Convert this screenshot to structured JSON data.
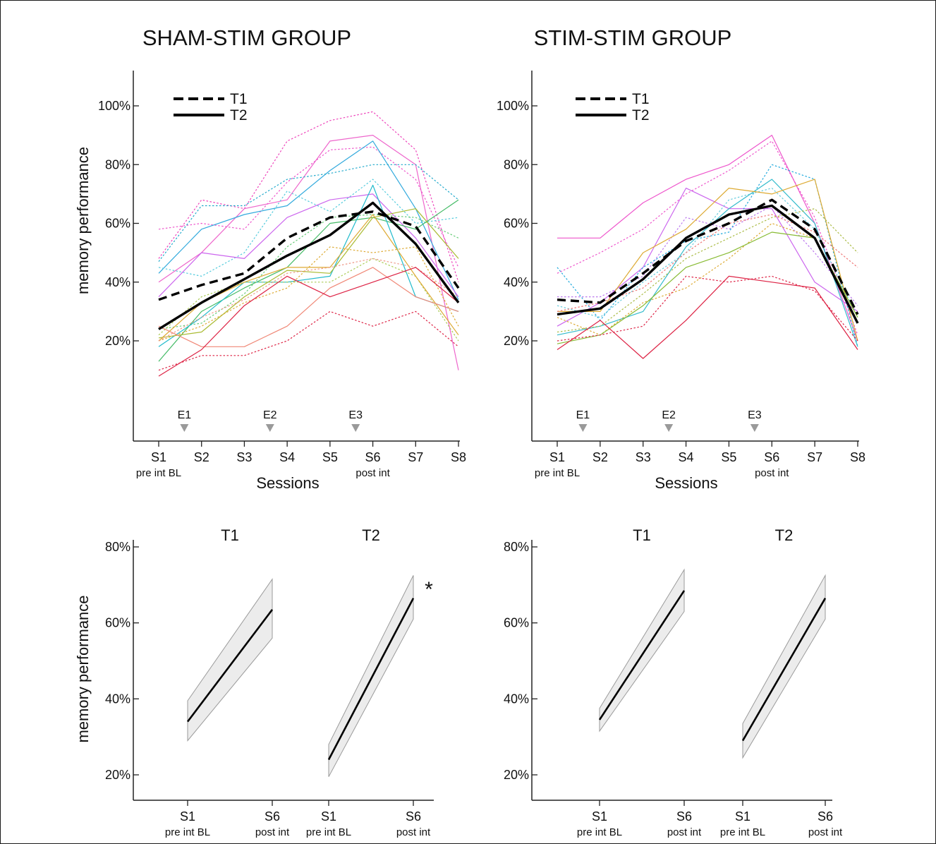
{
  "chart_data": [
    {
      "type": "line",
      "title": "SHAM-STIM GROUP",
      "xlabel": "Sessions",
      "ylabel": "memory performance",
      "categories": [
        "S1",
        "S2",
        "S3",
        "S4",
        "S5",
        "S6",
        "S7",
        "S8"
      ],
      "category_sublabels": [
        "pre int BL",
        "",
        "",
        "",
        "",
        "post int",
        "",
        ""
      ],
      "yticks": [
        "20%",
        "40%",
        "60%",
        "80%",
        "100%"
      ],
      "events": [
        {
          "label": "E1",
          "after_session": 1
        },
        {
          "label": "E2",
          "after_session": 3
        },
        {
          "label": "E3",
          "after_session": 5
        }
      ],
      "legend": [
        {
          "label": "T1",
          "style": "dashed"
        },
        {
          "label": "T2",
          "style": "solid"
        }
      ],
      "series": [
        {
          "style": "mean-dashed",
          "values": [
            34,
            39,
            43,
            55,
            62,
            64,
            59,
            38
          ]
        },
        {
          "style": "mean-solid",
          "values": [
            24,
            33,
            41,
            49,
            56,
            67,
            53,
            33
          ]
        },
        {
          "color": "#ee44bb",
          "style": "dotted",
          "values": [
            48,
            68,
            65,
            88,
            95,
            98,
            85,
            40
          ]
        },
        {
          "color": "#ee66cc",
          "style": "solid",
          "values": [
            40,
            50,
            65,
            68,
            88,
            90,
            80,
            10
          ]
        },
        {
          "color": "#ee55cc",
          "style": "dotted",
          "values": [
            58,
            60,
            58,
            74,
            85,
            86,
            75,
            45
          ]
        },
        {
          "color": "#33aadd",
          "style": "solid",
          "values": [
            43,
            58,
            63,
            66,
            78,
            88,
            65,
            34
          ]
        },
        {
          "color": "#22aacc",
          "style": "dotted",
          "values": [
            47,
            66,
            66,
            75,
            77,
            80,
            80,
            68
          ]
        },
        {
          "color": "#55ccdd",
          "style": "dotted",
          "values": [
            45,
            42,
            50,
            71,
            64,
            75,
            60,
            62
          ]
        },
        {
          "color": "#cc66ee",
          "style": "solid",
          "values": [
            35,
            50,
            48,
            62,
            68,
            70,
            55,
            35
          ]
        },
        {
          "color": "#44bb66",
          "style": "solid",
          "values": [
            13,
            30,
            38,
            45,
            60,
            62,
            58,
            68
          ]
        },
        {
          "color": "#66cc77",
          "style": "dotted",
          "values": [
            24,
            26,
            36,
            52,
            62,
            63,
            62,
            55
          ]
        },
        {
          "color": "#22bbcc",
          "style": "solid",
          "values": [
            18,
            28,
            40,
            40,
            42,
            73,
            35,
            30
          ]
        },
        {
          "color": "#aabb33",
          "style": "solid",
          "values": [
            21,
            23,
            35,
            44,
            43,
            62,
            65,
            48
          ]
        },
        {
          "color": "#aacc55",
          "style": "dotted",
          "values": [
            22,
            35,
            40,
            40,
            40,
            48,
            42,
            20
          ]
        },
        {
          "color": "#ddaa33",
          "style": "solid",
          "values": [
            20,
            33,
            40,
            45,
            45,
            63,
            42,
            22
          ]
        },
        {
          "color": "#ddaa33",
          "style": "dotted",
          "values": [
            20,
            25,
            33,
            38,
            52,
            50,
            52,
            25
          ]
        },
        {
          "color": "#f08877",
          "style": "solid",
          "values": [
            25,
            18,
            18,
            25,
            38,
            45,
            35,
            30
          ]
        },
        {
          "color": "#ee9988",
          "style": "dotted",
          "values": [
            20,
            28,
            34,
            43,
            45,
            48,
            45,
            35
          ]
        },
        {
          "color": "#dd2244",
          "style": "solid",
          "values": [
            8,
            17,
            32,
            42,
            35,
            40,
            45,
            33
          ]
        },
        {
          "color": "#dd2244",
          "style": "dotted",
          "values": [
            10,
            15,
            15,
            20,
            30,
            25,
            30,
            18
          ]
        }
      ]
    },
    {
      "type": "line",
      "title": "STIM-STIM GROUP",
      "xlabel": "Sessions",
      "ylabel": "",
      "categories": [
        "S1",
        "S2",
        "S3",
        "S4",
        "S5",
        "S6",
        "S7",
        "S8"
      ],
      "category_sublabels": [
        "pre int BL",
        "",
        "",
        "",
        "",
        "post int",
        "",
        ""
      ],
      "yticks": [
        "20%",
        "40%",
        "60%",
        "80%",
        "100%"
      ],
      "events": [
        {
          "label": "E1",
          "after_session": 1
        },
        {
          "label": "E2",
          "after_session": 3
        },
        {
          "label": "E3",
          "after_session": 5
        }
      ],
      "legend": [
        {
          "label": "T1",
          "style": "dashed"
        },
        {
          "label": "T2",
          "style": "solid"
        }
      ],
      "series": [
        {
          "style": "mean-dashed",
          "values": [
            34,
            33,
            43,
            54,
            60,
            68,
            58,
            29
          ]
        },
        {
          "style": "mean-solid",
          "values": [
            29,
            31,
            41,
            55,
            63,
            66,
            55,
            26
          ]
        },
        {
          "color": "#ee55cc",
          "style": "solid",
          "values": [
            55,
            55,
            67,
            75,
            80,
            90,
            60,
            20
          ]
        },
        {
          "color": "#ee55cc",
          "style": "dotted",
          "values": [
            43,
            50,
            58,
            70,
            78,
            88,
            62,
            22
          ]
        },
        {
          "color": "#cc66ee",
          "style": "solid",
          "values": [
            25,
            33,
            45,
            72,
            65,
            65,
            40,
            30
          ]
        },
        {
          "color": "#bb77ee",
          "style": "dotted",
          "values": [
            35,
            35,
            42,
            62,
            58,
            66,
            50,
            32
          ]
        },
        {
          "color": "#22aadd",
          "style": "dotted",
          "values": [
            45,
            27,
            45,
            54,
            57,
            80,
            75,
            18
          ]
        },
        {
          "color": "#33bbcc",
          "style": "solid",
          "values": [
            22,
            25,
            30,
            52,
            65,
            75,
            60,
            18
          ]
        },
        {
          "color": "#66ccdd",
          "style": "dotted",
          "values": [
            32,
            28,
            40,
            50,
            68,
            72,
            58,
            28
          ]
        },
        {
          "color": "#ddaa33",
          "style": "solid",
          "values": [
            30,
            30,
            50,
            58,
            72,
            70,
            75,
            20
          ]
        },
        {
          "color": "#ddaa33",
          "style": "dotted",
          "values": [
            28,
            22,
            33,
            38,
            48,
            60,
            55,
            28
          ]
        },
        {
          "color": "#88bb33",
          "style": "solid",
          "values": [
            19,
            22,
            32,
            45,
            50,
            57,
            55,
            28
          ]
        },
        {
          "color": "#aabb44",
          "style": "dotted",
          "values": [
            23,
            25,
            36,
            48,
            55,
            62,
            65,
            50
          ]
        },
        {
          "color": "#dd2244",
          "style": "solid",
          "values": [
            17,
            27,
            14,
            27,
            42,
            40,
            38,
            17
          ]
        },
        {
          "color": "#dd2244",
          "style": "dotted",
          "values": [
            20,
            22,
            25,
            42,
            40,
            42,
            37,
            20
          ]
        },
        {
          "color": "#ee7777",
          "style": "dotted",
          "values": [
            30,
            33,
            38,
            50,
            60,
            63,
            57,
            45
          ]
        }
      ]
    },
    {
      "type": "line",
      "title": "",
      "xlabel": "",
      "ylabel": "memory performance",
      "yticks": [
        "20%",
        "40%",
        "60%",
        "80%"
      ],
      "significance_marker": "*",
      "panels": [
        {
          "label": "T1",
          "categories": [
            "S1",
            "S6"
          ],
          "sublabels": [
            "pre int BL",
            "post int"
          ],
          "values": [
            34,
            63.5
          ],
          "lower": [
            29,
            56
          ],
          "upper": [
            39.5,
            71.5
          ]
        },
        {
          "label": "T2",
          "categories": [
            "S1",
            "S6"
          ],
          "sublabels": [
            "pre int BL",
            "post int"
          ],
          "values": [
            24,
            66.5
          ],
          "lower": [
            19.5,
            61
          ],
          "upper": [
            28,
            72.5
          ]
        }
      ]
    },
    {
      "type": "line",
      "title": "",
      "xlabel": "",
      "ylabel": "",
      "yticks": [
        "20%",
        "40%",
        "60%",
        "80%"
      ],
      "panels": [
        {
          "label": "T1",
          "categories": [
            "S1",
            "S6"
          ],
          "sublabels": [
            "pre int BL",
            "post int"
          ],
          "values": [
            34.5,
            68.5
          ],
          "lower": [
            31.5,
            63
          ],
          "upper": [
            37.5,
            74
          ]
        },
        {
          "label": "T2",
          "categories": [
            "S1",
            "S6"
          ],
          "sublabels": [
            "pre int BL",
            "post int"
          ],
          "values": [
            29,
            66.5
          ],
          "lower": [
            24.5,
            61
          ],
          "upper": [
            33.5,
            72.5
          ]
        }
      ]
    }
  ]
}
